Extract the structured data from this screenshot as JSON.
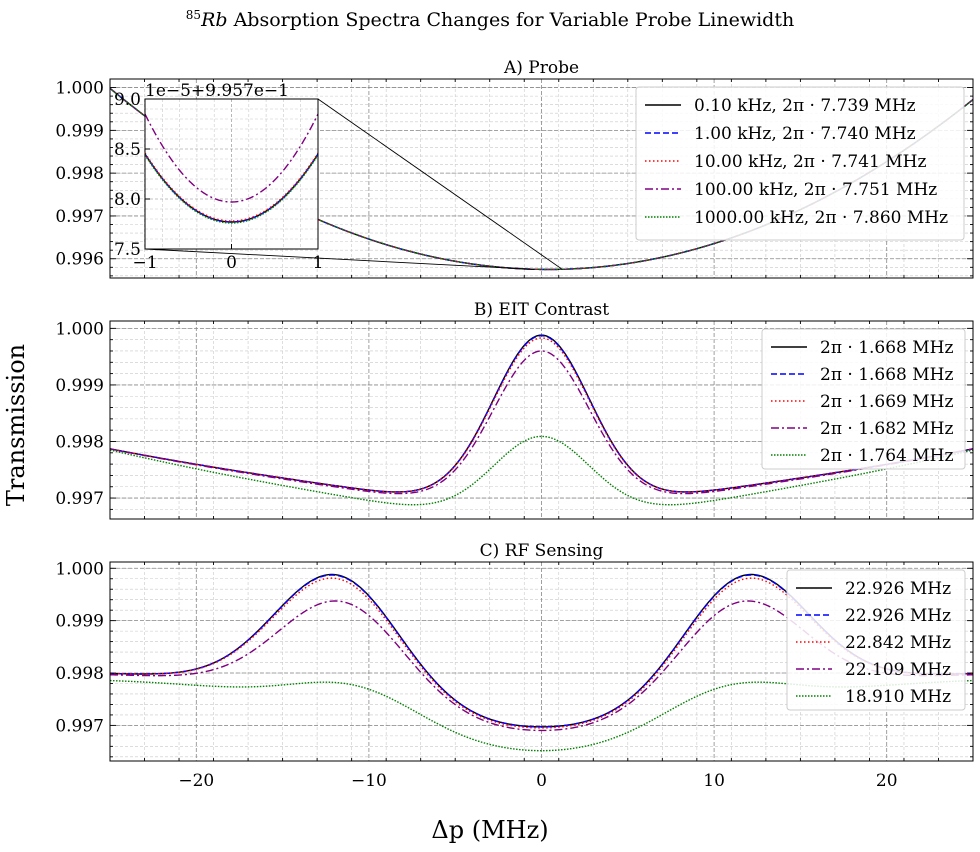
{
  "figure": {
    "title_prefix": "85",
    "title_italic": "Rb",
    "title_rest": " Absorption Spectra Changes for Variable Probe Linewidth",
    "ylabel": "Transmission",
    "xlabel": "Δp (MHz)"
  },
  "chart_data": [
    {
      "id": "probe",
      "type": "line",
      "title": "A) Probe",
      "xlim": [
        -25,
        25
      ],
      "ylim": [
        0.99555,
        1.0002
      ],
      "yticks": [
        0.996,
        0.997,
        0.998,
        0.999,
        1.0
      ],
      "ytick_labels": [
        "0.996",
        "0.997",
        "0.998",
        "0.999",
        "1.000"
      ],
      "xticks": [
        -20,
        -10,
        0,
        10,
        20
      ],
      "grid": true,
      "legend_position": "upper-right",
      "curve_model": {
        "dip": 0.99575,
        "curvature": 6.56e-06,
        "center": 0.4
      },
      "series": [
        {
          "name": "0.10 kHz, 2π · 7.739 MHz",
          "color": "#000000",
          "style": "solid",
          "offset": 0.0
        },
        {
          "name": "1.00 kHz, 2π · 7.740 MHz",
          "color": "#0000ff",
          "style": "dashed",
          "offset": 0.0
        },
        {
          "name": "10.00 kHz, 2π · 7.741 MHz",
          "color": "#ff0000",
          "style": "dotted",
          "offset": 0.0
        },
        {
          "name": "100.00 kHz, 2π · 7.751 MHz",
          "color": "#800080",
          "style": "dashdot",
          "offset": 0.0
        },
        {
          "name": "1000.00 kHz, 2π · 7.860 MHz",
          "color": "#008000",
          "style": "dotted-dense",
          "offset": 0.0
        }
      ],
      "inset": {
        "xlim": [
          -1,
          1
        ],
        "ylim": [
          7.5,
          9.0
        ],
        "offset_label": "1e−5+9.957e−1",
        "xticks": [
          -1,
          0,
          1
        ],
        "xtick_labels": [
          "−1",
          "0",
          "1"
        ],
        "yticks": [
          7.5,
          8.0,
          8.5,
          9.0
        ],
        "ytick_labels": [
          "7.5",
          "8.0",
          "8.5",
          "9.0"
        ],
        "series": [
          {
            "name": "0.10 kHz",
            "color": "#000000",
            "style": "solid",
            "min": 7.77,
            "curv": 0.68
          },
          {
            "name": "1.00 kHz",
            "color": "#0000ff",
            "style": "dashed",
            "min": 7.77,
            "curv": 0.68
          },
          {
            "name": "10.00 kHz",
            "color": "#ff0000",
            "style": "dotted",
            "min": 7.78,
            "curv": 0.68
          },
          {
            "name": "100.00 kHz",
            "color": "#800080",
            "style": "dashdot",
            "min": 7.97,
            "curv": 0.88
          },
          {
            "name": "1000.00 kHz",
            "color": "#008000",
            "style": "dotted-dense",
            "min": 7.76,
            "curv": 0.68
          }
        ]
      }
    },
    {
      "id": "eit",
      "type": "line",
      "title": "B) EIT Contrast",
      "xlim": [
        -25,
        25
      ],
      "ylim": [
        0.99663,
        1.00013
      ],
      "yticks": [
        0.997,
        0.998,
        0.999,
        1.0
      ],
      "ytick_labels": [
        "0.997",
        "0.998",
        "0.999",
        "1.000"
      ],
      "xticks": [
        -20,
        -10,
        0,
        10,
        20
      ],
      "grid": true,
      "legend_position": "upper-right",
      "series": [
        {
          "name": "2π · 1.668 MHz",
          "color": "#000000",
          "style": "solid",
          "peak": 0.99988,
          "edge": 0.99787,
          "dip": 0.99696
        },
        {
          "name": "2π · 1.668 MHz",
          "color": "#0000ff",
          "style": "dashed",
          "peak": 0.99987,
          "edge": 0.99787,
          "dip": 0.99696
        },
        {
          "name": "2π · 1.669 MHz",
          "color": "#ff0000",
          "style": "dotted",
          "peak": 0.99983,
          "edge": 0.99787,
          "dip": 0.99696
        },
        {
          "name": "2π · 1.682 MHz",
          "color": "#800080",
          "style": "dashdot",
          "peak": 0.9996,
          "edge": 0.99787,
          "dip": 0.99693
        },
        {
          "name": "2π · 1.764 MHz",
          "color": "#008000",
          "style": "dotted-dense",
          "peak": 0.99809,
          "edge": 0.99785,
          "dip": 0.99674
        }
      ]
    },
    {
      "id": "rf",
      "type": "line",
      "title": "C) RF Sensing",
      "xlim": [
        -25,
        25
      ],
      "ylim": [
        0.99632,
        1.00012
      ],
      "yticks": [
        0.997,
        0.998,
        0.999,
        1.0
      ],
      "ytick_labels": [
        "0.997",
        "0.998",
        "0.999",
        "1.000"
      ],
      "xticks": [
        -20,
        -10,
        0,
        10,
        20
      ],
      "xtick_labels": [
        "−20",
        "−10",
        "0",
        "10",
        "20"
      ],
      "grid": true,
      "legend_position": "upper-right",
      "series": [
        {
          "name": "22.926 MHz",
          "color": "#000000",
          "style": "solid",
          "peak": 0.99987,
          "peak_x": 11.8,
          "center": 0.99695,
          "edge": 0.99802
        },
        {
          "name": "22.926 MHz",
          "color": "#0000ff",
          "style": "dashed",
          "peak": 0.99986,
          "peak_x": 11.8,
          "center": 0.99695,
          "edge": 0.99802
        },
        {
          "name": "22.842 MHz",
          "color": "#ff0000",
          "style": "dotted",
          "peak": 0.9998,
          "peak_x": 11.8,
          "center": 0.99693,
          "edge": 0.99802
        },
        {
          "name": "22.109 MHz",
          "color": "#800080",
          "style": "dashdot",
          "peak": 0.99936,
          "peak_x": 11.5,
          "center": 0.99688,
          "edge": 0.998
        },
        {
          "name": "18.910 MHz",
          "color": "#008000",
          "style": "dotted-dense",
          "peak": 0.99774,
          "peak_x": 10.5,
          "center": 0.9965,
          "edge": 0.9979
        }
      ]
    }
  ]
}
